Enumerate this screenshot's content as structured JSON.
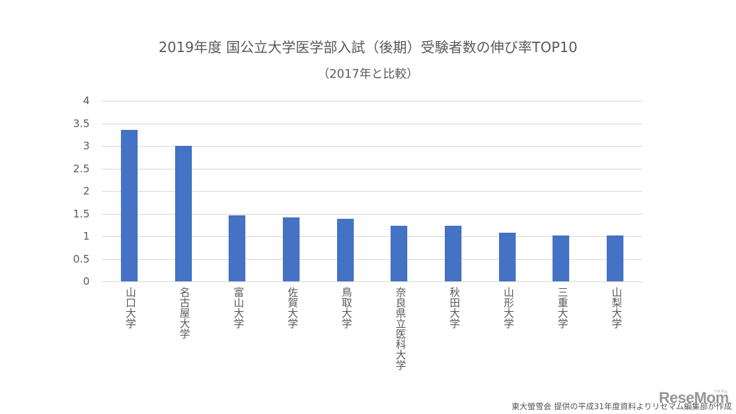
{
  "chart_data": {
    "type": "bar",
    "title": "2019年度 国公立大学医学部入試（後期）受験者数の伸び率TOP10",
    "subtitle": "（2017年と比較）",
    "xlabel": "",
    "ylabel": "",
    "categories": [
      "山口大学",
      "名古屋大学",
      "富山大学",
      "佐賀大学",
      "鳥取大学",
      "奈良県立医科大学",
      "秋田大学",
      "山形大学",
      "三重大学",
      "山梨大学"
    ],
    "values": [
      3.35,
      3.0,
      1.46,
      1.42,
      1.38,
      1.23,
      1.23,
      1.08,
      1.02,
      1.02
    ],
    "ylim": [
      0,
      4
    ],
    "yticks": [
      "0",
      "0.5",
      "1",
      "1.5",
      "2",
      "2.5",
      "3",
      "3.5",
      "4"
    ],
    "grid": true,
    "legend": null,
    "bar_color": "#4472c4"
  },
  "source_note": "東大螢雪会 提供の平成31年度資料よりリセマム編集部が作成",
  "logo": {
    "text": "ReseMom",
    "ruby": "リセマム"
  }
}
